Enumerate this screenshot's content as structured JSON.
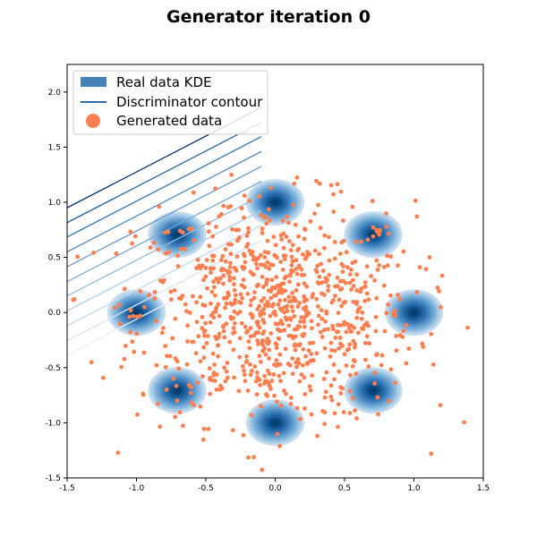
{
  "chart_data": {
    "type": "scatter",
    "title": "Generator iteration 0",
    "xlabel": "",
    "ylabel": "",
    "xlim": [
      -1.5,
      1.5
    ],
    "ylim": [
      -1.5,
      2.25
    ],
    "x_ticks": [
      "-1.5",
      "-1.0",
      "-0.5",
      "0.0",
      "0.5",
      "1.0",
      "1.5"
    ],
    "y_ticks": [
      "-1.5",
      "-1.0",
      "-0.5",
      "0.0",
      "0.5",
      "1.0",
      "1.5",
      "2.0"
    ],
    "grid": false,
    "legend_position": "top-left",
    "legend": [
      "Real data KDE",
      "Discriminator contour",
      "Generated data"
    ],
    "series": [
      {
        "name": "Real data KDE",
        "kind": "kde",
        "color": "#08519c",
        "centers": [
          [
            0.0,
            1.0
          ],
          [
            0.707,
            0.707
          ],
          [
            1.0,
            0.0
          ],
          [
            0.707,
            -0.707
          ],
          [
            0.0,
            -1.0
          ],
          [
            -0.707,
            -0.707
          ],
          [
            -1.0,
            0.0
          ],
          [
            -0.707,
            0.707
          ]
        ],
        "spread": 0.07
      },
      {
        "name": "Discriminator contour",
        "kind": "lines",
        "slope": 0.65,
        "intercepts": [
          1.925,
          1.79,
          1.66,
          1.525,
          1.39,
          1.255,
          1.125,
          0.99,
          0.855,
          0.72,
          0.59
        ],
        "colors": [
          "#08306b",
          "#1f5c99",
          "#2e6fad",
          "#4a87bf",
          "#6499c9",
          "#7aaad2",
          "#94bcdc",
          "#aecde6",
          "#c3d9ec",
          "#d8e6f2",
          "#e8f0f7"
        ]
      },
      {
        "name": "Generated data",
        "kind": "points",
        "color": "#ff7f50",
        "count": 900,
        "mean": [
          0.0,
          0.0
        ],
        "std": 0.5
      }
    ]
  }
}
